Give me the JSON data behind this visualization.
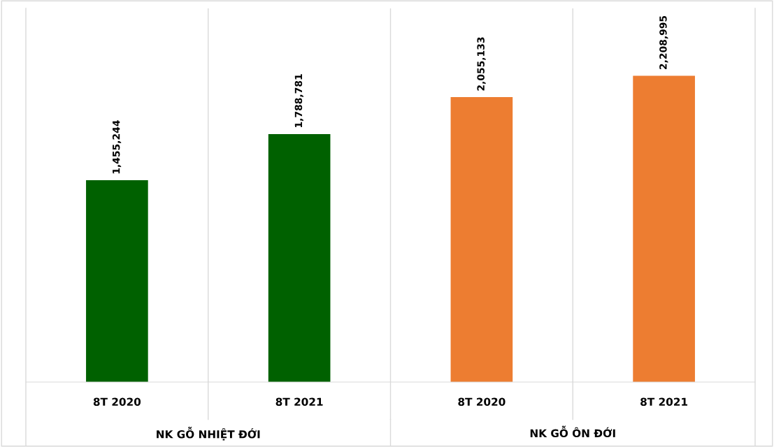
{
  "chart_data": {
    "type": "bar",
    "categories": [
      "8T 2020",
      "8T 2021",
      "8T 2020",
      "8T 2021"
    ],
    "values": [
      1455244,
      1788781,
      2055133,
      2208995
    ],
    "colors": [
      "#006100",
      "#006100",
      "#ed7d31",
      "#ed7d31"
    ],
    "value_labels": [
      "1,455,244",
      "1,788,781",
      "2,055,133",
      "2,208,995"
    ],
    "grid": false,
    "legend": false,
    "tick_labels": "x",
    "annotations": [
      "NK GỖ NHIỆT ĐỚI",
      "NK GỖ ÔN ĐỚI"
    ]
  }
}
